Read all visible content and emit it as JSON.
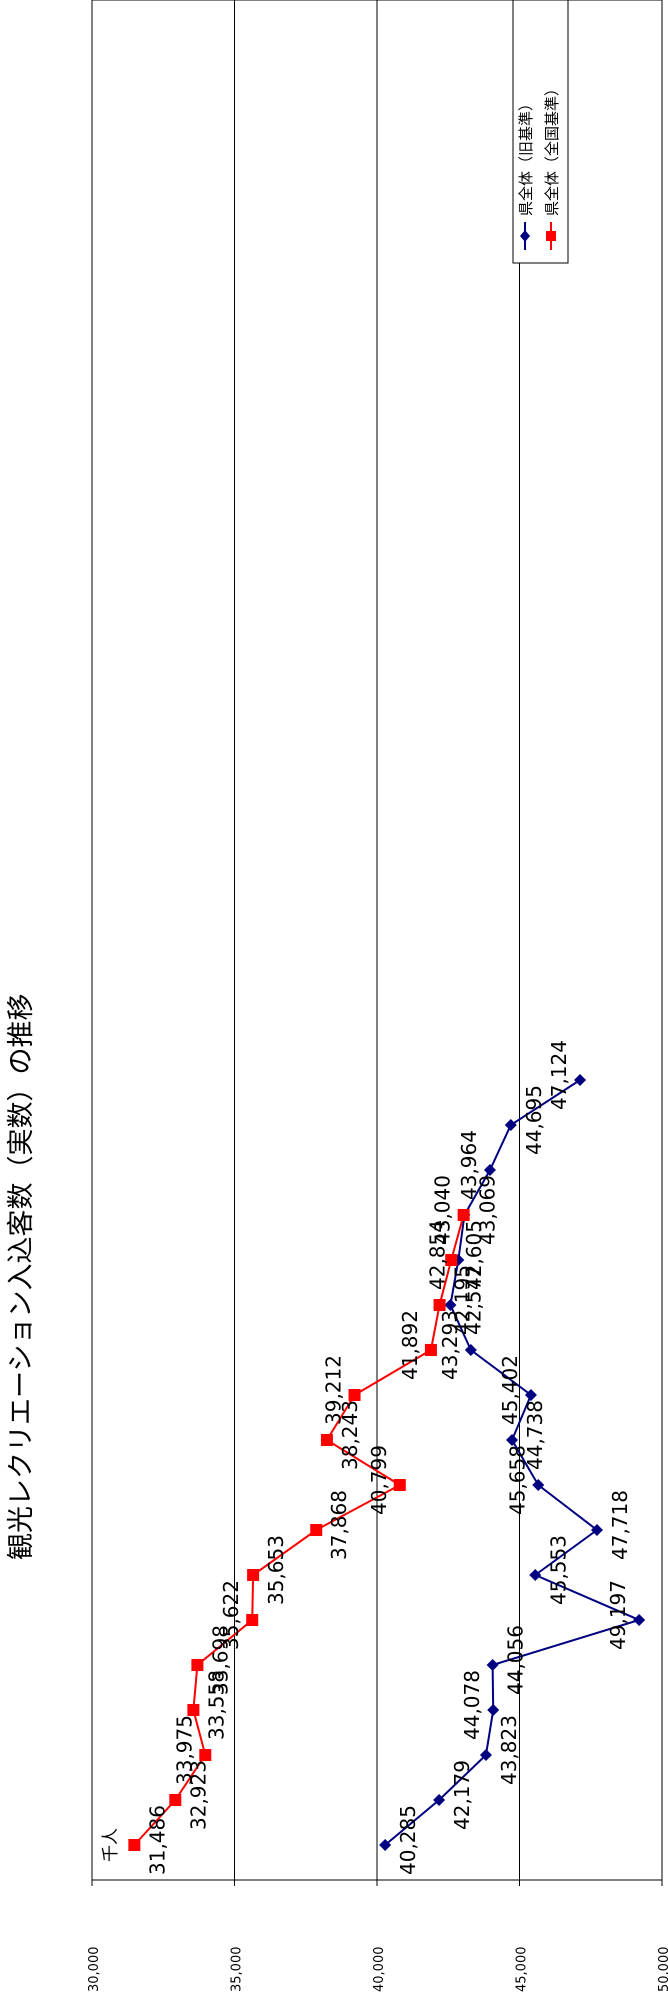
{
  "chart_data": {
    "type": "line",
    "title": "観光レクリエーション入込客数（実数）の推移",
    "unit_label": "千人",
    "ylim": [
      30000,
      50000
    ],
    "y_ticks": [
      "30,000",
      "35,000",
      "40,000",
      "45,000",
      "50,000"
    ],
    "grid": true,
    "legend_position": "top-right",
    "series": [
      {
        "name": "県全体（旧基準）",
        "color": "#000080",
        "marker": "diamond",
        "values": [
          40285,
          42179,
          43823,
          44078,
          44056,
          49197,
          45553,
          47718,
          45658,
          44738,
          45402,
          43293,
          42577,
          42854,
          43069,
          43964,
          44695,
          47124
        ],
        "labels": [
          "40,285",
          "42,179",
          "43,823",
          "44,078",
          "44,056",
          "49,197",
          "45,553",
          "47,718",
          "45,658",
          "44,738",
          "45,402",
          "43,293",
          "42,577",
          "42,854",
          "43,069",
          "43,964",
          "44,695",
          "47,124"
        ]
      },
      {
        "name": "県全体（全国基準）",
        "color": "#ff0000",
        "marker": "square",
        "values": [
          31486,
          32923,
          33975,
          33558,
          33698,
          35622,
          35653,
          37868,
          40799,
          38243,
          39212,
          41892,
          42195,
          42605,
          43040
        ],
        "labels": [
          "31,486",
          "32,923",
          "33,975",
          "33,558",
          "33,698",
          "35,622",
          "35,653",
          "37,868",
          "40,799",
          "38,243",
          "39,212",
          "41,892",
          "42,195",
          "42,605",
          "43,040"
        ]
      }
    ]
  }
}
